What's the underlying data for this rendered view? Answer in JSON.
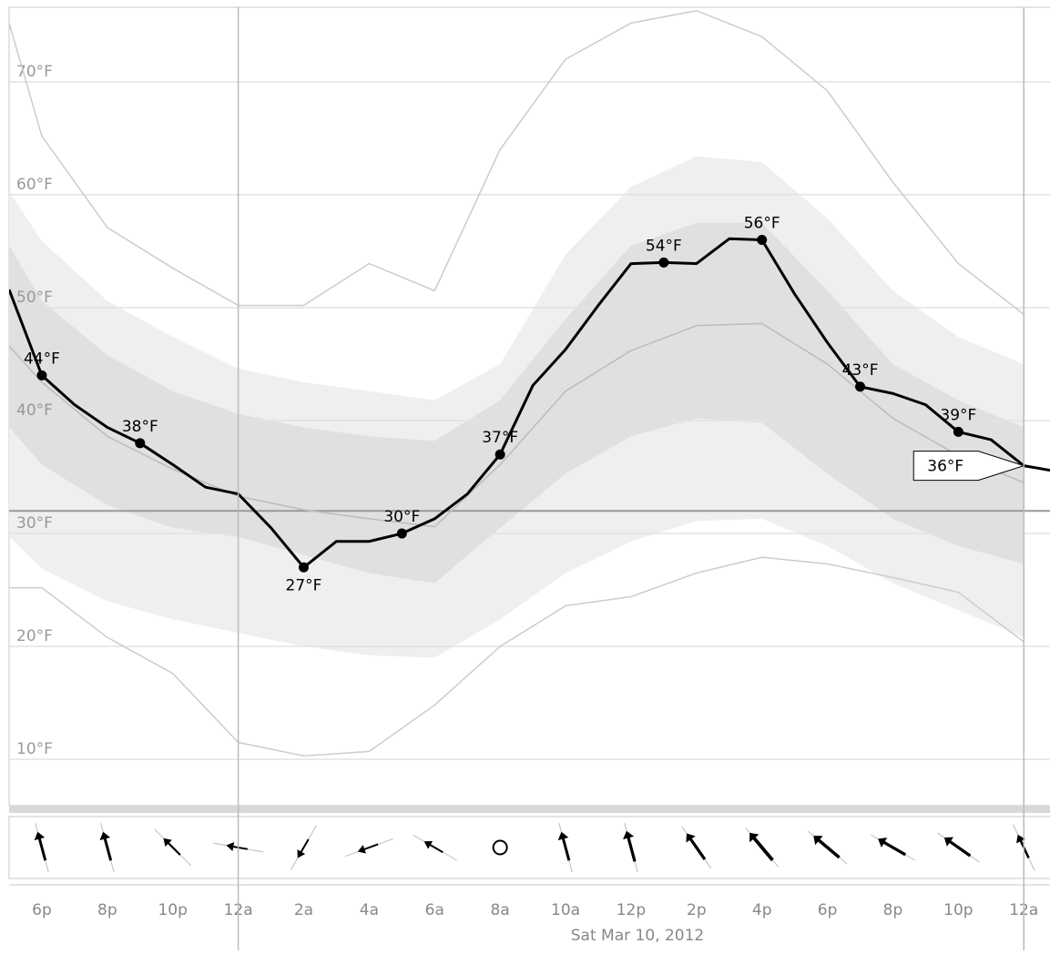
{
  "chart_data": {
    "type": "line",
    "xlim": [
      -1,
      30.8
    ],
    "ylim": [
      5.9,
      76.6
    ],
    "yticks": [
      {
        "value": 10,
        "label": "10°F"
      },
      {
        "value": 20,
        "label": "20°F"
      },
      {
        "value": 30,
        "label": "30°F"
      },
      {
        "value": 40,
        "label": "40°F"
      },
      {
        "value": 50,
        "label": "50°F"
      },
      {
        "value": 60,
        "label": "60°F"
      },
      {
        "value": 70,
        "label": "70°F"
      }
    ],
    "xticks": [
      {
        "value": 0,
        "label": "6p"
      },
      {
        "value": 2,
        "label": "8p"
      },
      {
        "value": 4,
        "label": "10p"
      },
      {
        "value": 6,
        "label": "12a"
      },
      {
        "value": 8,
        "label": "2a"
      },
      {
        "value": 10,
        "label": "4a"
      },
      {
        "value": 12,
        "label": "6a"
      },
      {
        "value": 14,
        "label": "8a"
      },
      {
        "value": 16,
        "label": "10a"
      },
      {
        "value": 18,
        "label": "12p"
      },
      {
        "value": 20,
        "label": "2p"
      },
      {
        "value": 22,
        "label": "4p"
      },
      {
        "value": 24,
        "label": "6p"
      },
      {
        "value": 26,
        "label": "8p"
      },
      {
        "value": 28,
        "label": "10p"
      },
      {
        "value": 30,
        "label": "12a"
      }
    ],
    "xlabel": "Sat Mar 10, 2012",
    "grid": true,
    "reference_line": 32,
    "day_lines": [
      6,
      30
    ],
    "x": [
      -1,
      0,
      1,
      2,
      3,
      4,
      5,
      6,
      7,
      8,
      9,
      10,
      11,
      12,
      13,
      14,
      15,
      16,
      17,
      18,
      19,
      20,
      21,
      22,
      23,
      24,
      25,
      26,
      27,
      28,
      29,
      30,
      30.8
    ],
    "values": [
      51.6,
      44,
      41.4,
      39.4,
      38,
      36.1,
      34.1,
      33.5,
      30.5,
      27,
      29.3,
      29.3,
      30,
      31.3,
      33.5,
      37,
      43.1,
      46.3,
      50.2,
      53.9,
      54,
      53.9,
      56.1,
      56,
      51.2,
      46.9,
      43,
      42.4,
      41.4,
      39,
      38.3,
      36,
      35.6
    ],
    "value_labels": [
      null,
      "44°F",
      null,
      null,
      "38°F",
      null,
      null,
      null,
      null,
      "27°F",
      null,
      null,
      "30°F",
      null,
      null,
      "37°F",
      null,
      null,
      null,
      null,
      "54°F",
      null,
      null,
      "56°F",
      null,
      null,
      "43°F",
      null,
      null,
      "39°F",
      null,
      "36°F",
      null
    ],
    "current_index": 31,
    "color": "#000000",
    "band_x": [
      -1,
      0,
      2,
      4,
      6,
      8,
      10,
      12,
      14,
      16,
      18,
      20,
      22,
      24,
      26,
      28,
      30
    ],
    "bands": [
      {
        "color": "#efefef",
        "upper": [
          60.3,
          55.9,
          50.6,
          47.4,
          44.6,
          43.4,
          42.6,
          41.8,
          45.0,
          54.7,
          60.7,
          63.4,
          62.9,
          57.9,
          51.5,
          47.4,
          45.0
        ],
        "lower": [
          29.7,
          26.9,
          24.0,
          22.4,
          21.2,
          20.0,
          19.2,
          19.0,
          22.4,
          26.5,
          29.3,
          31.1,
          31.3,
          28.9,
          25.6,
          23.2,
          20.8
        ]
      },
      {
        "color": "#e0e0e0",
        "upper": [
          55.5,
          50.6,
          45.8,
          42.6,
          40.6,
          39.4,
          38.6,
          38.2,
          41.8,
          49.0,
          55.5,
          57.5,
          57.5,
          51.5,
          45.0,
          41.8,
          39.4
        ],
        "lower": [
          39.4,
          36.1,
          32.5,
          30.5,
          29.7,
          28.1,
          26.5,
          25.6,
          30.5,
          35.3,
          38.6,
          40.2,
          39.8,
          35.3,
          31.3,
          28.9,
          27.3
        ]
      }
    ],
    "lines": [
      {
        "color": "#bbbbbb",
        "values": [
          46.6,
          43.4,
          38.6,
          35.7,
          33.3,
          32.1,
          31.3,
          30.6,
          36.1,
          42.6,
          46.2,
          48.4,
          48.6,
          45.0,
          40.2,
          36.9,
          34.5
        ]
      },
      {
        "color": "#cccccc",
        "values": [
          75.2,
          65.2,
          57.1,
          53.5,
          50.2,
          50.2,
          53.9,
          51.5,
          64.0,
          72.0,
          75.2,
          76.3,
          74.0,
          69.2,
          61.1,
          53.9,
          49.4
        ]
      },
      {
        "color": "#cccccc",
        "values": [
          25.2,
          25.2,
          20.8,
          17.6,
          11.5,
          10.3,
          10.7,
          14.8,
          20.0,
          23.6,
          24.4,
          26.5,
          27.9,
          27.3,
          26.1,
          24.8,
          20.4
        ]
      }
    ],
    "wind": {
      "directions": [
        -15,
        -15,
        -45,
        -80,
        210,
        250,
        -60,
        0,
        -15,
        -15,
        -35,
        -40,
        -50,
        -60,
        -55,
        -25
      ],
      "speeds": [
        8,
        8,
        5,
        4,
        4,
        4,
        4,
        0,
        8,
        9,
        9,
        11,
        10,
        9,
        9,
        6
      ]
    }
  }
}
